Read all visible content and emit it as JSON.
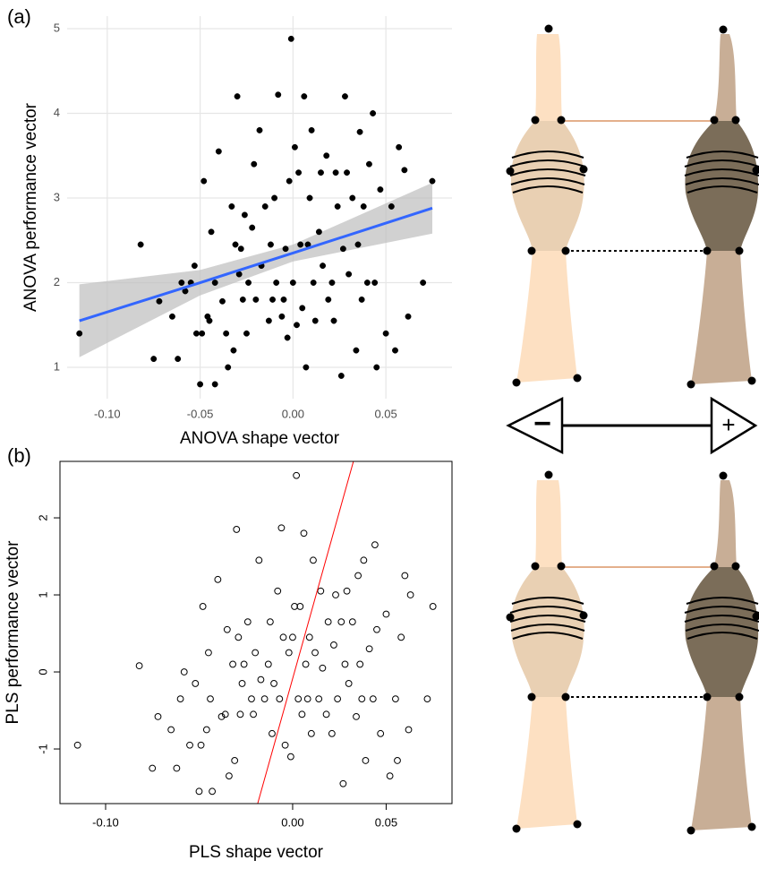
{
  "chart_data": [
    {
      "type": "scatter",
      "panel_label": "(a)",
      "x_label": "ANOVA shape vector",
      "y_label": "ANOVA performance vector",
      "xlim": [
        -0.1216,
        0.0856
      ],
      "ylim": [
        0.63,
        5.148
      ],
      "xticks": [
        {
          "value": -0.1,
          "label": "-0.10"
        },
        {
          "value": -0.05,
          "label": "-0.05"
        },
        {
          "value": 0,
          "label": "0.00"
        },
        {
          "value": 0.05,
          "label": "0.05"
        }
      ],
      "yticks": [
        1,
        2,
        3,
        4,
        5
      ],
      "grid": true,
      "filled": true,
      "frame": false,
      "color": "#000000",
      "x": [
        -0.115,
        -0.082,
        -0.075,
        -0.072,
        -0.065,
        -0.062,
        -0.06,
        -0.058,
        -0.055,
        -0.053,
        -0.052,
        -0.05,
        -0.049,
        -0.048,
        -0.046,
        -0.045,
        -0.044,
        -0.042,
        -0.042,
        -0.04,
        -0.038,
        -0.036,
        -0.035,
        -0.033,
        -0.032,
        -0.031,
        -0.03,
        -0.029,
        -0.028,
        -0.027,
        -0.026,
        -0.025,
        -0.024,
        -0.022,
        -0.021,
        -0.02,
        -0.018,
        -0.017,
        -0.015,
        -0.013,
        -0.012,
        -0.011,
        -0.01,
        -0.009,
        -0.008,
        -0.006,
        -0.005,
        -0.004,
        -0.003,
        -0.002,
        -0.001,
        0.0,
        0.001,
        0.002,
        0.003,
        0.004,
        0.005,
        0.006,
        0.007,
        0.008,
        0.009,
        0.01,
        0.011,
        0.012,
        0.014,
        0.015,
        0.016,
        0.018,
        0.019,
        0.021,
        0.022,
        0.023,
        0.024,
        0.026,
        0.027,
        0.028,
        0.029,
        0.03,
        0.032,
        0.034,
        0.035,
        0.036,
        0.037,
        0.038,
        0.04,
        0.041,
        0.043,
        0.044,
        0.045,
        0.047,
        0.05,
        0.053,
        0.055,
        0.057,
        0.06,
        0.062,
        0.07,
        0.075
      ],
      "values": [
        1.4,
        2.45,
        1.1,
        1.78,
        1.6,
        1.1,
        2.0,
        1.9,
        2.0,
        2.2,
        1.4,
        0.8,
        1.4,
        3.2,
        1.6,
        1.55,
        2.6,
        0.8,
        2.0,
        3.55,
        1.78,
        1.4,
        1.0,
        2.9,
        1.2,
        2.45,
        4.2,
        2.1,
        2.4,
        1.8,
        2.8,
        1.4,
        2.0,
        2.65,
        3.4,
        1.8,
        3.8,
        2.2,
        2.9,
        1.55,
        2.45,
        1.8,
        3.0,
        2.0,
        4.22,
        1.6,
        1.8,
        2.4,
        1.35,
        3.2,
        4.88,
        2.0,
        3.6,
        1.5,
        3.3,
        2.45,
        1.7,
        4.2,
        1.0,
        2.45,
        3.0,
        3.8,
        2.0,
        1.55,
        2.6,
        3.3,
        2.2,
        3.5,
        1.8,
        2.0,
        1.55,
        3.3,
        2.9,
        0.9,
        2.4,
        4.2,
        3.3,
        2.1,
        3.0,
        1.2,
        2.45,
        3.78,
        1.8,
        2.9,
        2.0,
        3.4,
        4.0,
        2.0,
        1.0,
        3.1,
        1.4,
        2.9,
        1.2,
        3.6,
        3.33,
        1.6,
        2.0,
        3.2
      ],
      "fit": {
        "color": "#3366ff",
        "band_color": "#bdbdbd",
        "x": [
          -0.115,
          -0.05,
          0.0,
          0.075
        ],
        "y": [
          1.55,
          2.0,
          2.35,
          2.88
        ],
        "lower": [
          1.12,
          1.85,
          2.25,
          2.58
        ],
        "upper": [
          1.98,
          2.15,
          2.45,
          3.18
        ]
      }
    },
    {
      "type": "scatter",
      "panel_label": "(b)",
      "x_label": "PLS shape vector",
      "y_label": "PLS performance vector",
      "xlim": [
        -0.1244,
        0.0852
      ],
      "ylim": [
        -1.709,
        2.733
      ],
      "xticks": [
        {
          "value": -0.1,
          "label": "-0.10"
        },
        {
          "value": 0,
          "label": "0.00"
        },
        {
          "value": 0.05,
          "label": "0.05"
        }
      ],
      "yticks": [
        -1,
        0,
        1,
        2
      ],
      "grid": false,
      "filled": false,
      "frame": true,
      "color": "#000000",
      "x": [
        -0.115,
        -0.082,
        -0.075,
        -0.072,
        -0.065,
        -0.062,
        -0.06,
        -0.058,
        -0.055,
        -0.052,
        -0.05,
        -0.049,
        -0.048,
        -0.046,
        -0.045,
        -0.044,
        -0.043,
        -0.04,
        -0.038,
        -0.036,
        -0.035,
        -0.034,
        -0.032,
        -0.031,
        -0.03,
        -0.029,
        -0.028,
        -0.027,
        -0.026,
        -0.024,
        -0.022,
        -0.021,
        -0.02,
        -0.018,
        -0.017,
        -0.015,
        -0.013,
        -0.012,
        -0.011,
        -0.01,
        -0.008,
        -0.007,
        -0.006,
        -0.005,
        -0.004,
        -0.002,
        -0.001,
        0.0,
        0.001,
        0.002,
        0.003,
        0.004,
        0.005,
        0.006,
        0.007,
        0.008,
        0.009,
        0.01,
        0.011,
        0.012,
        0.014,
        0.015,
        0.016,
        0.018,
        0.019,
        0.021,
        0.022,
        0.023,
        0.024,
        0.026,
        0.027,
        0.028,
        0.029,
        0.03,
        0.032,
        0.034,
        0.035,
        0.036,
        0.037,
        0.038,
        0.039,
        0.041,
        0.043,
        0.044,
        0.045,
        0.047,
        0.05,
        0.052,
        0.055,
        0.056,
        0.058,
        0.06,
        0.062,
        0.063,
        0.072,
        0.075
      ],
      "values": [
        -0.95,
        0.08,
        -1.25,
        -0.58,
        -0.75,
        -1.25,
        -0.35,
        0.0,
        -0.95,
        -0.15,
        -1.55,
        -0.95,
        0.85,
        -0.75,
        0.25,
        -0.35,
        -1.55,
        1.2,
        -0.58,
        -0.55,
        0.55,
        -1.35,
        0.1,
        -1.15,
        1.85,
        0.45,
        -0.55,
        -0.15,
        0.1,
        0.65,
        -0.35,
        -0.55,
        0.25,
        1.45,
        -0.1,
        -0.35,
        0.1,
        0.65,
        -0.8,
        -0.15,
        1.05,
        -0.35,
        1.87,
        0.45,
        -0.95,
        0.25,
        -1.1,
        0.45,
        0.85,
        2.55,
        -0.35,
        0.85,
        -0.55,
        1.8,
        0.1,
        -0.35,
        0.45,
        -0.8,
        1.45,
        0.25,
        -0.35,
        1.05,
        0.05,
        -0.55,
        0.65,
        -0.8,
        0.35,
        1.0,
        -0.35,
        0.65,
        -1.45,
        0.1,
        1.05,
        -0.15,
        0.65,
        -0.58,
        1.25,
        0.1,
        -0.35,
        1.45,
        -1.15,
        0.3,
        -0.35,
        1.65,
        0.55,
        -0.8,
        0.75,
        -1.35,
        -0.35,
        -1.15,
        0.45,
        1.25,
        -0.75,
        1.0,
        -0.35,
        0.85
      ],
      "fit": {
        "color": "#ff0000",
        "x": [
          -0.0187,
          0.0325
        ],
        "y": [
          -1.709,
          2.733
        ]
      }
    }
  ],
  "diagram": {
    "minus_label": "−",
    "plus_label": "+"
  }
}
